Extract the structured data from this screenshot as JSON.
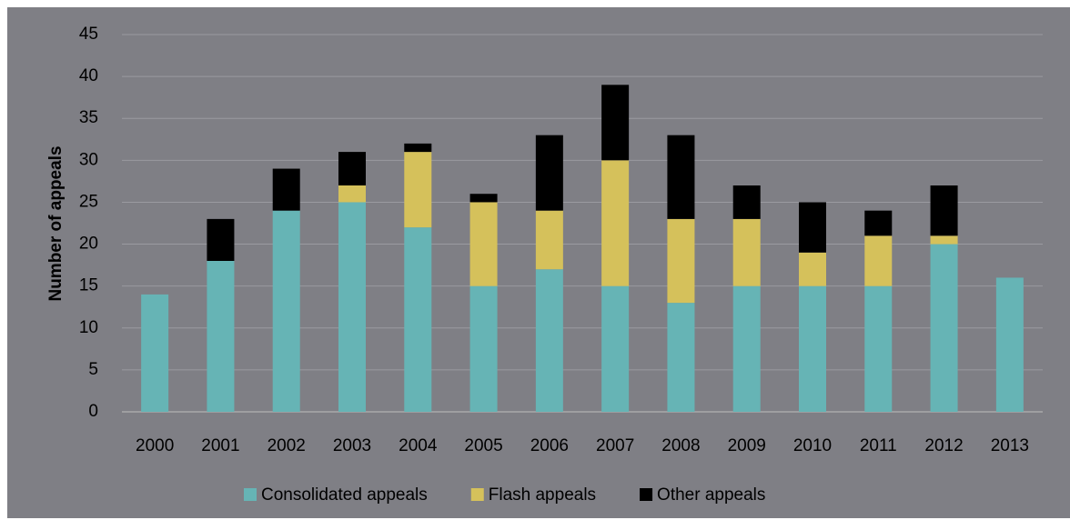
{
  "chart_data": {
    "type": "stacked_bar",
    "y_label": "Number of appeals",
    "categories": [
      "2000",
      "2001",
      "2002",
      "2003",
      "2004",
      "2005",
      "2006",
      "2007",
      "2008",
      "2009",
      "2010",
      "2011",
      "2012",
      "2013"
    ],
    "series": [
      {
        "name": "Consolidated appeals",
        "color": "#66b4b5",
        "values": [
          14,
          18,
          24,
          25,
          22,
          15,
          17,
          15,
          13,
          15,
          15,
          15,
          20,
          16
        ]
      },
      {
        "name": "Flash appeals",
        "color": "#d5c15b",
        "values": [
          0,
          0,
          0,
          2,
          9,
          10,
          7,
          15,
          10,
          8,
          4,
          6,
          1,
          0
        ]
      },
      {
        "name": "Other appeals",
        "color": "#000000",
        "values": [
          0,
          5,
          5,
          4,
          1,
          1,
          9,
          9,
          10,
          4,
          6,
          3,
          6,
          0
        ]
      }
    ],
    "ylim": [
      0,
      45
    ],
    "yticks": [
      0,
      5,
      10,
      15,
      20,
      25,
      30,
      35,
      40,
      45
    ],
    "grid": true,
    "legend": "bottom"
  }
}
